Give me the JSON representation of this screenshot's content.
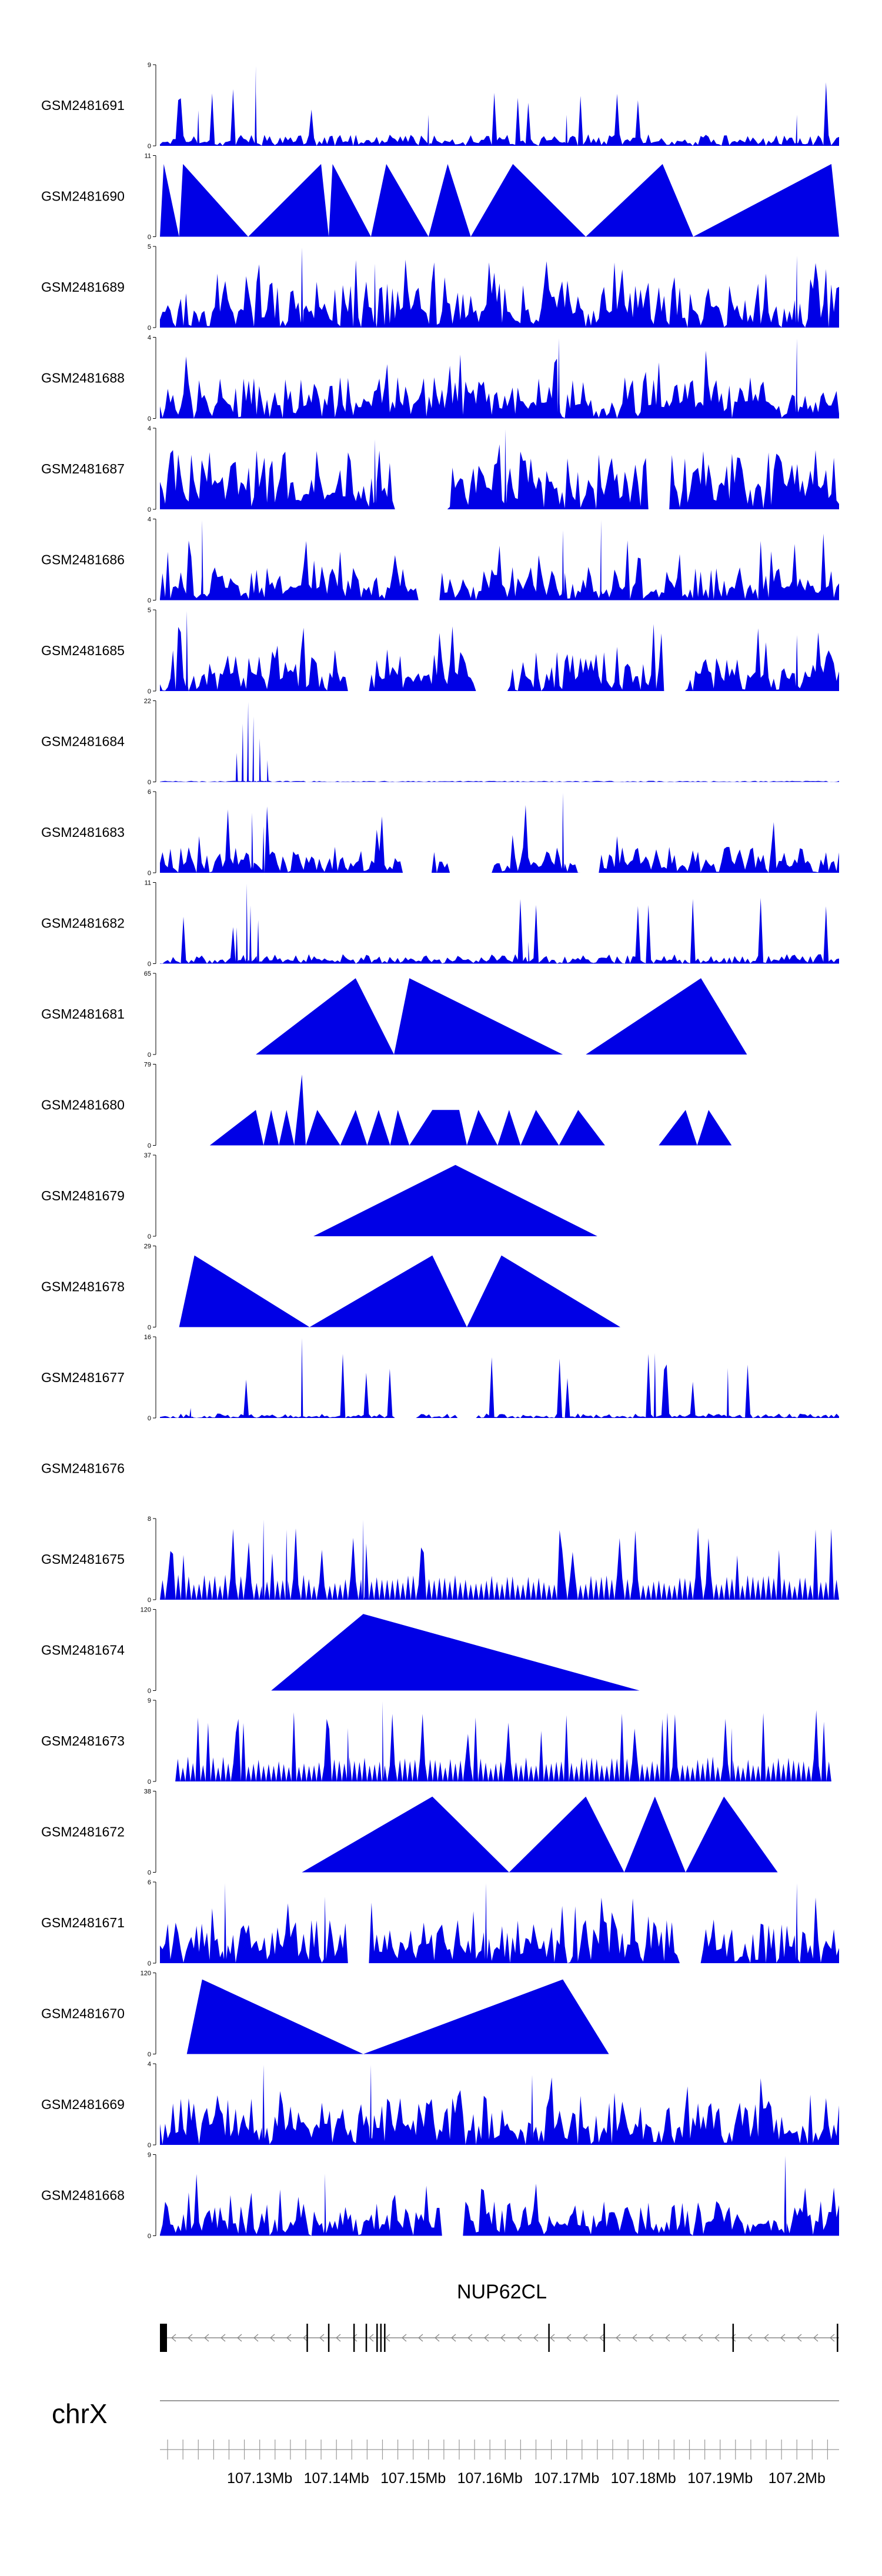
{
  "colors": {
    "signal": "#0000e6",
    "axis": "#000000",
    "gene": "#000000",
    "intron": "#888888",
    "chrom_line": "#999999"
  },
  "chart_data": {
    "type": "area",
    "title": "",
    "genome": {
      "chromosome": "chrX",
      "xlim_mb": [
        107.117,
        107.2055
      ],
      "tick_labels": [
        "107.13Mb",
        "107.14Mb",
        "107.15Mb",
        "107.16Mb",
        "107.17Mb",
        "107.18Mb",
        "107.19Mb",
        "107.2Mb"
      ],
      "tick_values_mb": [
        107.13,
        107.14,
        107.15,
        107.16,
        107.17,
        107.18,
        107.19,
        107.2
      ],
      "minor_tick_step_mb": 0.002
    },
    "gene": {
      "name": "NUP62CL",
      "start_mb": 107.117,
      "end_mb": 107.2055,
      "strand": "-",
      "exons_mb": [
        107.117,
        107.1177,
        107.1361,
        107.1389,
        107.1422,
        107.1438,
        107.1452,
        107.1457,
        107.1462,
        107.1676,
        107.1748,
        107.1916,
        107.2052
      ]
    },
    "tracks": [
      {
        "name": "GSM2481691",
        "ymax": 9,
        "mode": "noisy",
        "seed": 11,
        "base": 1.0,
        "range": [
          107.117,
          107.2055
        ],
        "peaks": [
          [
            107.1295,
            9
          ],
          [
            107.1295,
            6
          ],
          [
            107.122,
            4
          ],
          [
            107.152,
            3.5
          ],
          [
            107.17,
            3.5
          ],
          [
            107.2,
            3.5
          ]
        ]
      },
      {
        "name": "GSM2481690",
        "ymax": 11,
        "mode": "tri",
        "points": [
          [
            107.117,
            0
          ],
          [
            107.1175,
            10
          ],
          [
            107.1195,
            0
          ],
          [
            107.12,
            10
          ],
          [
            107.1285,
            0
          ],
          [
            107.138,
            10
          ],
          [
            107.139,
            0
          ],
          [
            107.1395,
            10
          ],
          [
            107.1445,
            0
          ],
          [
            107.1465,
            10
          ],
          [
            107.152,
            0
          ],
          [
            107.1545,
            10
          ],
          [
            107.1575,
            0
          ],
          [
            107.163,
            10
          ],
          [
            107.1725,
            0
          ],
          [
            107.1825,
            10
          ],
          [
            107.1865,
            0
          ],
          [
            107.2045,
            10
          ],
          [
            107.2055,
            0
          ]
        ]
      },
      {
        "name": "GSM2481689",
        "ymax": 5,
        "mode": "noisy",
        "seed": 23,
        "base": 2.3,
        "range": [
          107.117,
          107.2055
        ],
        "peaks": [
          [
            107.1355,
            5
          ],
          [
            107.2,
            4.5
          ],
          [
            107.145,
            4
          ]
        ]
      },
      {
        "name": "GSM2481688",
        "ymax": 4,
        "mode": "noisy",
        "seed": 37,
        "base": 1.6,
        "range": [
          107.117,
          107.2055
        ],
        "peaks": [
          [
            107.169,
            4
          ],
          [
            107.2,
            4
          ]
        ]
      },
      {
        "name": "GSM2481687",
        "ymax": 4,
        "mode": "noisy",
        "seed": 41,
        "base": 2.3,
        "range": [
          107.117,
          107.2055
        ],
        "peaks": [
          [
            107.162,
            4
          ],
          [
            107.145,
            3.5
          ]
        ],
        "gaps": [
          [
            107.1475,
            107.1545
          ],
          [
            107.1805,
            107.1835
          ]
        ]
      },
      {
        "name": "GSM2481686",
        "ymax": 4,
        "mode": "noisy",
        "seed": 53,
        "base": 1.3,
        "range": [
          107.117,
          107.2055
        ],
        "peaks": [
          [
            107.1225,
            4
          ],
          [
            107.1745,
            4
          ],
          [
            107.1695,
            3.5
          ]
        ],
        "gaps": [
          [
            107.1505,
            107.1535
          ]
        ]
      },
      {
        "name": "GSM2481685",
        "ymax": 5,
        "mode": "noisy",
        "seed": 67,
        "base": 2.0,
        "range": [
          107.117,
          107.2055
        ],
        "peaks": [
          [
            107.1205,
            5
          ],
          [
            107.2,
            3.5
          ]
        ],
        "gaps": [
          [
            107.1415,
            107.1445
          ],
          [
            107.158,
            107.1625
          ],
          [
            107.1825,
            107.1855
          ]
        ]
      },
      {
        "name": "GSM2481684",
        "ymax": 22,
        "mode": "noisy",
        "seed": 71,
        "base": 0.6,
        "range": [
          107.117,
          107.2055
        ],
        "peaks": [
          [
            107.1285,
            22
          ],
          [
            107.1278,
            16
          ],
          [
            107.1292,
            18
          ],
          [
            107.13,
            12
          ],
          [
            107.127,
            8
          ],
          [
            107.131,
            6
          ]
        ],
        "smooth": true
      },
      {
        "name": "GSM2481683",
        "ymax": 6,
        "mode": "noisy",
        "seed": 83,
        "base": 1.5,
        "range": [
          107.117,
          107.2055
        ],
        "peaks": [
          [
            107.1695,
            6
          ],
          [
            107.129,
            4.5
          ],
          [
            107.1305,
            3.5
          ]
        ],
        "gaps": [
          [
            107.1485,
            107.1525
          ],
          [
            107.1545,
            107.1605
          ],
          [
            107.1715,
            107.1745
          ]
        ]
      },
      {
        "name": "GSM2481682",
        "ymax": 11,
        "mode": "noisy",
        "seed": 97,
        "base": 1.0,
        "range": [
          107.117,
          107.2055
        ],
        "peaks": [
          [
            107.1283,
            11
          ],
          [
            107.1288,
            8
          ],
          [
            107.1298,
            6
          ],
          [
            107.127,
            5
          ],
          [
            107.165,
            3
          ]
        ]
      },
      {
        "name": "GSM2481681",
        "ymax": 65,
        "mode": "tri",
        "points": [
          [
            107.1295,
            0
          ],
          [
            107.1425,
            62
          ],
          [
            107.1475,
            0
          ],
          [
            107.1495,
            62
          ],
          [
            107.1695,
            0
          ],
          [
            107.1725,
            0
          ],
          [
            107.1875,
            62
          ],
          [
            107.1935,
            0
          ]
        ]
      },
      {
        "name": "GSM2481680",
        "ymax": 79,
        "mode": "tri",
        "points": [
          [
            107.1235,
            0
          ],
          [
            107.1295,
            35
          ],
          [
            107.1305,
            0
          ],
          [
            107.1315,
            35
          ],
          [
            107.1325,
            0
          ],
          [
            107.1335,
            35
          ],
          [
            107.1345,
            0
          ],
          [
            107.1355,
            70
          ],
          [
            107.136,
            0
          ],
          [
            107.1375,
            35
          ],
          [
            107.1405,
            0
          ],
          [
            107.1425,
            35
          ],
          [
            107.144,
            0
          ],
          [
            107.1455,
            35
          ],
          [
            107.147,
            0
          ],
          [
            107.148,
            35
          ],
          [
            107.1495,
            0
          ],
          [
            107.1525,
            35
          ],
          [
            107.156,
            35
          ],
          [
            107.157,
            0
          ],
          [
            107.1585,
            35
          ],
          [
            107.161,
            0
          ],
          [
            107.1625,
            35
          ],
          [
            107.164,
            0
          ],
          [
            107.166,
            35
          ],
          [
            107.169,
            0
          ],
          [
            107.1715,
            35
          ],
          [
            107.175,
            0
          ],
          [
            107.182,
            0
          ],
          [
            107.1855,
            35
          ],
          [
            107.187,
            0
          ],
          [
            107.1885,
            35
          ],
          [
            107.1915,
            0
          ]
        ]
      },
      {
        "name": "GSM2481679",
        "ymax": 37,
        "mode": "tri",
        "points": [
          [
            107.137,
            0
          ],
          [
            107.1555,
            33
          ],
          [
            107.174,
            0
          ]
        ]
      },
      {
        "name": "GSM2481678",
        "ymax": 29,
        "mode": "tri",
        "points": [
          [
            107.1195,
            0
          ],
          [
            107.1215,
            26
          ],
          [
            107.1365,
            0
          ],
          [
            107.1525,
            26
          ],
          [
            107.157,
            0
          ],
          [
            107.1615,
            26
          ],
          [
            107.177,
            0
          ]
        ]
      },
      {
        "name": "GSM2481677",
        "ymax": 16,
        "mode": "noisy",
        "seed": 101,
        "base": 0.7,
        "range": [
          107.117,
          107.2055
        ],
        "peaks": [
          [
            107.1355,
            16
          ],
          [
            107.1815,
            13
          ],
          [
            107.191,
            10
          ],
          [
            107.121,
            2
          ]
        ],
        "gaps": [
          [
            107.1475,
            107.1505
          ],
          [
            107.1555,
            107.1585
          ]
        ]
      },
      {
        "name": "GSM2481676",
        "ymax": null,
        "mode": "empty"
      },
      {
        "name": "GSM2481675",
        "ymax": 8,
        "mode": "noisy",
        "seed": 113,
        "base": 2.5,
        "range": [
          107.117,
          107.2055
        ],
        "peaks": [
          [
            107.1305,
            8
          ],
          [
            107.1435,
            8
          ],
          [
            107.1335,
            7
          ]
        ],
        "triFill": true
      },
      {
        "name": "GSM2481674",
        "ymax": 120,
        "mode": "tri",
        "points": [
          [
            107.1315,
            0
          ],
          [
            107.1435,
            115
          ],
          [
            107.1795,
            0
          ]
        ]
      },
      {
        "name": "GSM2481673",
        "ymax": 9,
        "mode": "noisy",
        "seed": 127,
        "base": 2.8,
        "range": [
          107.119,
          107.2045
        ],
        "peaks": [
          [
            107.146,
            9
          ],
          [
            107.1415,
            6
          ],
          [
            107.1915,
            6
          ]
        ],
        "triFill": true
      },
      {
        "name": "GSM2481672",
        "ymax": 38,
        "mode": "tri",
        "points": [
          [
            107.1355,
            0
          ],
          [
            107.1525,
            36
          ],
          [
            107.1625,
            0
          ],
          [
            107.1725,
            36
          ],
          [
            107.1775,
            0
          ],
          [
            107.1815,
            36
          ],
          [
            107.1855,
            0
          ],
          [
            107.1905,
            36
          ],
          [
            107.1975,
            0
          ]
        ]
      },
      {
        "name": "GSM2481671",
        "ymax": 6,
        "mode": "noisy",
        "seed": 139,
        "base": 2.5,
        "range": [
          107.117,
          107.2055
        ],
        "peaks": [
          [
            107.1255,
            6
          ],
          [
            107.1595,
            6
          ],
          [
            107.1595,
            6
          ],
          [
            107.2,
            6
          ],
          [
            107.1385,
            5
          ]
        ],
        "gaps": [
          [
            107.1415,
            107.1445
          ],
          [
            107.1845,
            107.1875
          ]
        ]
      },
      {
        "name": "GSM2481670",
        "ymax": 120,
        "mode": "tri",
        "points": [
          [
            107.1205,
            0
          ],
          [
            107.1225,
            112
          ],
          [
            107.1435,
            0
          ],
          [
            107.1695,
            112
          ],
          [
            107.1755,
            0
          ]
        ]
      },
      {
        "name": "GSM2481669",
        "ymax": 4,
        "mode": "noisy",
        "seed": 151,
        "base": 1.8,
        "range": [
          107.117,
          107.2055
        ],
        "peaks": [
          [
            107.1305,
            4
          ],
          [
            107.1445,
            4
          ],
          [
            107.1655,
            3.5
          ]
        ]
      },
      {
        "name": "GSM2481668",
        "ymax": 9,
        "mode": "noisy",
        "seed": 163,
        "base": 3.0,
        "range": [
          107.117,
          107.2055
        ],
        "peaks": [
          [
            107.1985,
            9
          ],
          [
            107.1385,
            7
          ]
        ],
        "gaps": [
          [
            107.1535,
            107.1565
          ]
        ]
      }
    ]
  }
}
